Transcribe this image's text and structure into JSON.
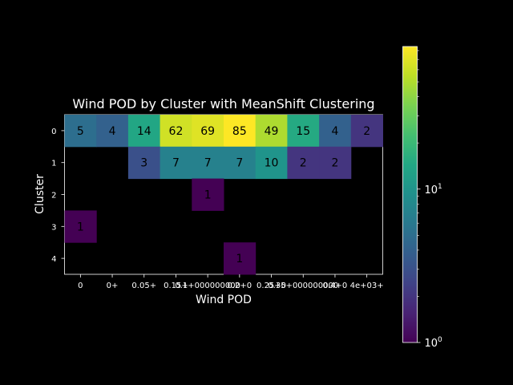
{
  "chart_data": {
    "type": "heatmap",
    "title": "Wind POD by Cluster with MeanShift Clustering",
    "xlabel": "Wind POD",
    "ylabel": "Cluster",
    "x_ticks": [
      "0",
      "0+",
      "0.05+",
      "0.15+",
      "0.1+000000000",
      "0.2+0",
      "0.25+0",
      "0.35+000000000",
      "0.4+0",
      "4e+03+"
    ],
    "y_ticks": [
      "0",
      "1",
      "2",
      "3",
      "4"
    ],
    "values": [
      [
        5,
        4,
        14,
        62,
        69,
        85,
        49,
        15,
        4,
        2
      ],
      [
        null,
        null,
        3,
        7,
        7,
        7,
        10,
        2,
        2,
        null
      ],
      [
        null,
        null,
        null,
        null,
        1,
        null,
        null,
        null,
        null,
        null
      ],
      [
        1,
        null,
        null,
        null,
        null,
        null,
        null,
        null,
        null,
        null
      ],
      [
        null,
        null,
        null,
        null,
        null,
        1,
        null,
        null,
        null,
        null
      ]
    ],
    "colormap": "viridis",
    "color_scale": "log",
    "color_range": [
      1,
      85
    ],
    "colorbar_ticks": [
      {
        "value": 1,
        "label": "10^0"
      },
      {
        "value": 10,
        "label": "10^1"
      }
    ],
    "annotations": "cell counts shown in each non-empty cell",
    "background": "#000000"
  }
}
